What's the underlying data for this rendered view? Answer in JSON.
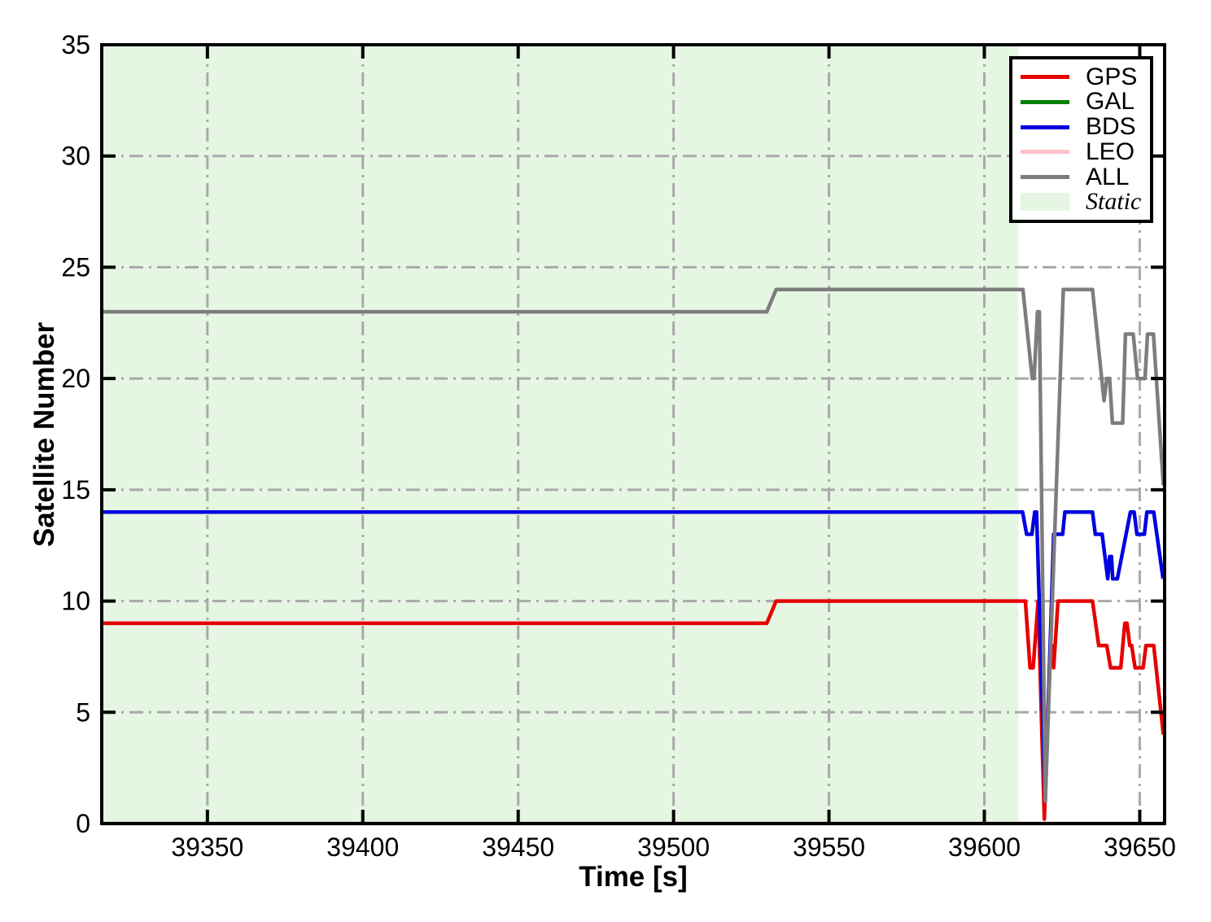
{
  "figure": {
    "background": "#ffffff",
    "axis_color": "#000000",
    "grid_color": "#a9a9a9",
    "tick_label_color": "#000000"
  },
  "chart_data": {
    "type": "line",
    "title": "",
    "xlabel": "Time [s]",
    "ylabel": "Satellite Number",
    "xlim": [
      39316,
      39658
    ],
    "ylim": [
      0,
      35
    ],
    "xticks": [
      39350,
      39400,
      39450,
      39500,
      39550,
      39600,
      39650
    ],
    "yticks": [
      0,
      5,
      10,
      15,
      20,
      25,
      30,
      35
    ],
    "grid": "dash-dot",
    "legend_position": "top-right",
    "shaded_region": {
      "label": "Static",
      "color": "#e5f6e3",
      "x_range": [
        39316,
        39611
      ]
    },
    "series": [
      {
        "name": "GPS",
        "color": "#e60000",
        "points": [
          [
            39316,
            9
          ],
          [
            39530,
            9
          ],
          [
            39533,
            10
          ],
          [
            39613.2,
            10
          ],
          [
            39614.7,
            7
          ],
          [
            39615.7,
            7
          ],
          [
            39617.3,
            10
          ],
          [
            39619.3,
            0.2
          ],
          [
            39621.2,
            8
          ],
          [
            39621.8,
            8
          ],
          [
            39622.3,
            7
          ],
          [
            39623.7,
            10
          ],
          [
            39634.8,
            10
          ],
          [
            39636.8,
            8
          ],
          [
            39639.4,
            8
          ],
          [
            39640.6,
            7
          ],
          [
            39643.9,
            7
          ],
          [
            39645.2,
            9
          ],
          [
            39645.9,
            9
          ],
          [
            39646.8,
            8
          ],
          [
            39647.4,
            8
          ],
          [
            39648.5,
            7
          ],
          [
            39651.1,
            7
          ],
          [
            39652,
            8
          ],
          [
            39654.5,
            8
          ],
          [
            39657.6,
            4
          ]
        ]
      },
      {
        "name": "GAL",
        "color": "#038003",
        "points": [
          [
            39316,
            0
          ],
          [
            39658,
            0
          ]
        ]
      },
      {
        "name": "BDS",
        "color": "#0000e0",
        "points": [
          [
            39316,
            14
          ],
          [
            39612.3,
            14
          ],
          [
            39613.6,
            13
          ],
          [
            39615.3,
            13
          ],
          [
            39616.2,
            14
          ],
          [
            39616.8,
            14
          ],
          [
            39619.6,
            1
          ],
          [
            39622.3,
            13
          ],
          [
            39625.2,
            13
          ],
          [
            39625.9,
            14
          ],
          [
            39634.8,
            14
          ],
          [
            39635.7,
            13
          ],
          [
            39637.9,
            13
          ],
          [
            39639.7,
            11
          ],
          [
            39640.3,
            12
          ],
          [
            39640.9,
            12
          ],
          [
            39641.3,
            11
          ],
          [
            39642.8,
            11
          ],
          [
            39647,
            14
          ],
          [
            39648.2,
            14
          ],
          [
            39649.1,
            13
          ],
          [
            39651.5,
            13
          ],
          [
            39652.3,
            14
          ],
          [
            39654.5,
            14
          ],
          [
            39657.5,
            11
          ]
        ]
      },
      {
        "name": "LEO",
        "color": "#ffc0cb",
        "points": [
          [
            39316,
            0
          ],
          [
            39658,
            0
          ]
        ]
      },
      {
        "name": "ALL",
        "color": "#7d7d7d",
        "points": [
          [
            39316,
            23
          ],
          [
            39530,
            23
          ],
          [
            39533,
            24
          ],
          [
            39612.4,
            24
          ],
          [
            39615.4,
            20
          ],
          [
            39616,
            20
          ],
          [
            39617.1,
            23
          ],
          [
            39617.7,
            23
          ],
          [
            39619.6,
            1
          ],
          [
            39625.4,
            24
          ],
          [
            39634.8,
            24
          ],
          [
            39638.5,
            19
          ],
          [
            39639.4,
            20
          ],
          [
            39640.3,
            20
          ],
          [
            39641.2,
            18
          ],
          [
            39644.5,
            18
          ],
          [
            39645.4,
            22
          ],
          [
            39647.9,
            22
          ],
          [
            39649.3,
            20
          ],
          [
            39651.7,
            20
          ],
          [
            39652.5,
            22
          ],
          [
            39654.4,
            22
          ],
          [
            39657.6,
            15.2
          ]
        ]
      }
    ]
  },
  "legend": {
    "items": [
      {
        "label": "GPS",
        "swatch": "line",
        "color": "#e60000",
        "italic": false
      },
      {
        "label": "GAL",
        "swatch": "line",
        "color": "#038003",
        "italic": false
      },
      {
        "label": "BDS",
        "swatch": "line",
        "color": "#0000e0",
        "italic": false
      },
      {
        "label": "LEO",
        "swatch": "line",
        "color": "#ffc0cb",
        "italic": false
      },
      {
        "label": "ALL",
        "swatch": "line",
        "color": "#7d7d7d",
        "italic": false
      },
      {
        "label": "Static",
        "swatch": "patch",
        "color": "#e5f6e3",
        "italic": true
      }
    ]
  }
}
